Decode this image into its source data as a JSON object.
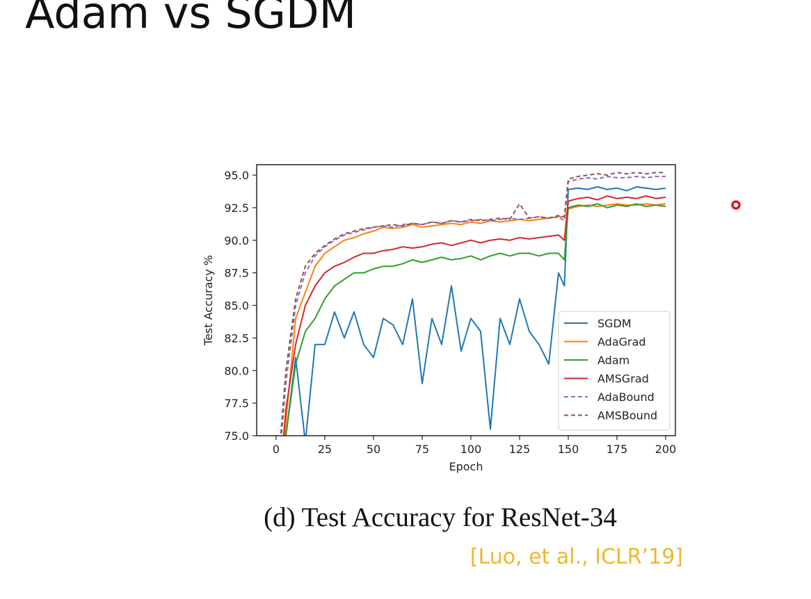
{
  "slide": {
    "title": "Adam vs SGDM",
    "caption": "(d) Test Accuracy for ResNet-34",
    "citation": "[Luo, et al., ICLR’19]",
    "citation_color": "#f1b52c",
    "pointer_color": "#e01010"
  },
  "chart_data": {
    "type": "line",
    "title": "",
    "xlabel": "Epoch",
    "ylabel": "Test Accuracy %",
    "xlim": [
      -10,
      205
    ],
    "ylim": [
      75.0,
      95.8
    ],
    "xticks": [
      0,
      25,
      50,
      75,
      100,
      125,
      150,
      175,
      200
    ],
    "yticks": [
      75.0,
      77.5,
      80.0,
      82.5,
      85.0,
      87.5,
      90.0,
      92.5,
      95.0
    ],
    "xtick_labels": [
      "0",
      "25",
      "50",
      "75",
      "100",
      "125",
      "150",
      "175",
      "200"
    ],
    "ytick_labels": [
      "75.0",
      "77.5",
      "80.0",
      "82.5",
      "85.0",
      "87.5",
      "90.0",
      "92.5",
      "95.0"
    ],
    "grid": false,
    "legend_position": "lower-right",
    "x": [
      1,
      5,
      10,
      15,
      20,
      25,
      30,
      35,
      40,
      45,
      50,
      55,
      60,
      65,
      70,
      75,
      80,
      85,
      90,
      95,
      100,
      105,
      110,
      115,
      120,
      125,
      130,
      135,
      140,
      145,
      148,
      150,
      155,
      160,
      165,
      170,
      175,
      180,
      185,
      190,
      195,
      200
    ],
    "series": [
      {
        "name": "SGDM",
        "color": "#1f77b4",
        "dash": false,
        "values": [
          70.0,
          75.0,
          81.0,
          74.5,
          82.0,
          82.0,
          84.5,
          82.5,
          84.5,
          82.0,
          81.0,
          84.0,
          83.5,
          82.0,
          85.5,
          79.0,
          84.0,
          82.0,
          86.5,
          81.5,
          84.0,
          83.0,
          75.5,
          84.0,
          82.0,
          85.5,
          83.0,
          82.0,
          80.5,
          87.5,
          86.5,
          93.9,
          94.0,
          93.9,
          94.1,
          93.9,
          94.0,
          93.8,
          94.1,
          94.0,
          93.9,
          94.0
        ]
      },
      {
        "name": "AdaGrad",
        "color": "#ff7f0e",
        "dash": false,
        "values": [
          70.0,
          76.0,
          84.0,
          86.0,
          88.0,
          89.0,
          89.5,
          90.0,
          90.2,
          90.5,
          90.7,
          91.0,
          90.9,
          91.0,
          91.2,
          91.0,
          91.1,
          91.2,
          91.3,
          91.2,
          91.4,
          91.3,
          91.5,
          91.4,
          91.5,
          91.6,
          91.5,
          91.6,
          91.7,
          91.8,
          91.8,
          92.4,
          92.6,
          92.7,
          92.6,
          92.7,
          92.8,
          92.7,
          92.7,
          92.8,
          92.7,
          92.8
        ]
      },
      {
        "name": "Adam",
        "color": "#2ca02c",
        "dash": false,
        "values": [
          70.0,
          75.0,
          80.5,
          83.0,
          84.0,
          85.5,
          86.5,
          87.0,
          87.5,
          87.5,
          87.8,
          88.0,
          88.0,
          88.2,
          88.5,
          88.3,
          88.5,
          88.7,
          88.5,
          88.6,
          88.8,
          88.5,
          88.8,
          89.0,
          88.8,
          89.0,
          89.0,
          88.8,
          89.0,
          89.0,
          88.5,
          92.5,
          92.7,
          92.6,
          92.8,
          92.5,
          92.7,
          92.6,
          92.8,
          92.6,
          92.7,
          92.6
        ]
      },
      {
        "name": "AMSGrad",
        "color": "#d62728",
        "dash": false,
        "values": [
          70.0,
          77.0,
          82.0,
          85.0,
          86.5,
          87.5,
          88.0,
          88.3,
          88.7,
          89.0,
          89.0,
          89.2,
          89.3,
          89.5,
          89.4,
          89.5,
          89.7,
          89.8,
          89.6,
          89.8,
          90.0,
          89.8,
          90.0,
          90.1,
          90.0,
          90.2,
          90.1,
          90.2,
          90.3,
          90.4,
          90.0,
          93.0,
          93.2,
          93.3,
          93.1,
          93.4,
          93.2,
          93.3,
          93.2,
          93.4,
          93.2,
          93.3
        ]
      },
      {
        "name": "AdaBound",
        "color": "#9467bd",
        "dash": true,
        "values": [
          72.0,
          79.0,
          85.0,
          87.5,
          88.8,
          89.5,
          90.0,
          90.4,
          90.6,
          90.8,
          91.0,
          91.1,
          91.0,
          91.2,
          91.3,
          91.2,
          91.4,
          91.3,
          91.5,
          91.4,
          91.5,
          91.6,
          91.5,
          91.6,
          91.7,
          91.6,
          91.7,
          91.8,
          91.7,
          91.8,
          91.5,
          94.5,
          94.7,
          94.8,
          94.7,
          94.9,
          94.8,
          94.8,
          94.9,
          94.8,
          94.9,
          94.9
        ]
      },
      {
        "name": "AMSBound",
        "color": "#8c564b",
        "dash": true,
        "values": [
          72.5,
          80.0,
          85.5,
          88.0,
          89.0,
          89.6,
          90.1,
          90.5,
          90.7,
          90.9,
          91.0,
          91.1,
          91.2,
          91.1,
          91.3,
          91.2,
          91.4,
          91.3,
          91.5,
          91.4,
          91.6,
          91.5,
          91.6,
          91.7,
          91.6,
          92.8,
          91.7,
          91.8,
          91.7,
          91.9,
          91.8,
          94.7,
          94.9,
          95.0,
          95.1,
          95.0,
          95.2,
          95.1,
          95.2,
          95.1,
          95.2,
          95.2
        ]
      }
    ]
  }
}
